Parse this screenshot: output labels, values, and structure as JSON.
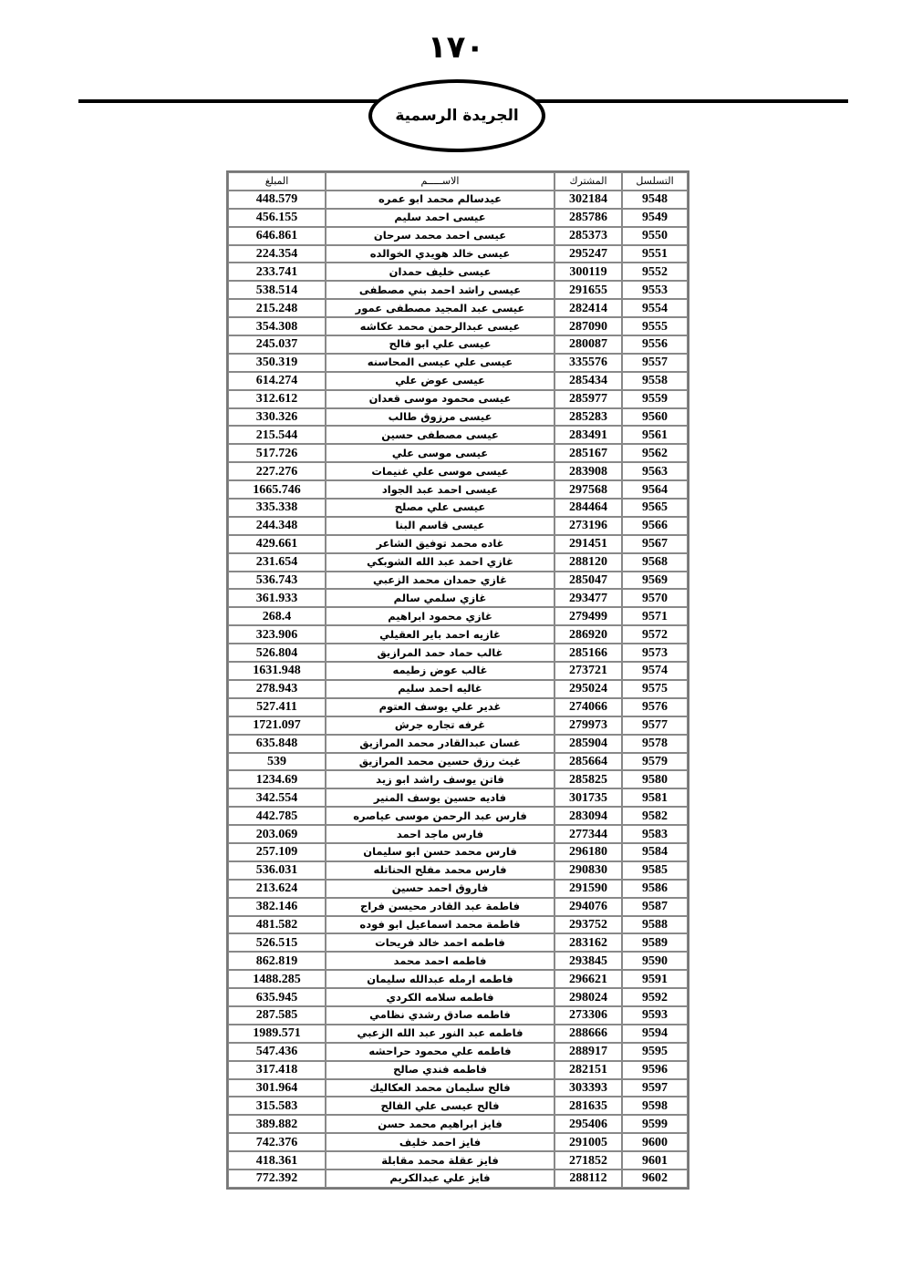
{
  "header": {
    "page_number": "١٧٠",
    "publication_title": "الجريدة الرسمية"
  },
  "table": {
    "columns": [
      "التسلسل",
      "المشترك",
      "الاســـــم",
      "المبلغ"
    ],
    "rows": [
      [
        "9548",
        "302184",
        "عيدسالم محمد ابو عمره",
        "448.579"
      ],
      [
        "9549",
        "285786",
        "عيسى احمد سليم",
        "456.155"
      ],
      [
        "9550",
        "285373",
        "عيسى احمد محمد سرحان",
        "646.861"
      ],
      [
        "9551",
        "295247",
        "عيسى خالد هويدي الخوالده",
        "224.354"
      ],
      [
        "9552",
        "300119",
        "عيسى خليف  حمدان",
        "233.741"
      ],
      [
        "9553",
        "291655",
        "عيسى راشد احمد بني مصطفى",
        "538.514"
      ],
      [
        "9554",
        "282414",
        "عيسى عبد المجيد مصطفى عمور",
        "215.248"
      ],
      [
        "9555",
        "287090",
        "عيسى عبدالرحمن محمد عكاشه",
        "354.308"
      ],
      [
        "9556",
        "280087",
        "عيسى علي ابو فالح",
        "245.037"
      ],
      [
        "9557",
        "335576",
        "عيسى علي عيسى المحاسنه",
        "350.319"
      ],
      [
        "9558",
        "285434",
        "عيسى عوض علي",
        "614.274"
      ],
      [
        "9559",
        "285977",
        "عيسى محمود موسى قعدان",
        "312.612"
      ],
      [
        "9560",
        "285283",
        "عيسى مرزوق طالب",
        "330.326"
      ],
      [
        "9561",
        "283491",
        "عيسى مصطفى حسين",
        "215.544"
      ],
      [
        "9562",
        "285167",
        "عيسى موسى علي",
        "517.726"
      ],
      [
        "9563",
        "283908",
        "عيسى موسى علي غنيمات",
        "227.276"
      ],
      [
        "9564",
        "297568",
        "عيسى احمد عبد الجواد",
        "1665.746"
      ],
      [
        "9565",
        "284464",
        "عيسى علي مصلح",
        "335.338"
      ],
      [
        "9566",
        "273196",
        "عيسى قاسم البنا",
        "244.348"
      ],
      [
        "9567",
        "291451",
        "غاده محمد توفيق الشاعر",
        "429.661"
      ],
      [
        "9568",
        "288120",
        "غازي احمد عبد الله الشوبكي",
        "231.654"
      ],
      [
        "9569",
        "285047",
        "غازي حمدان محمد الزعبي",
        "536.743"
      ],
      [
        "9570",
        "293477",
        "غازي سلمي سالم",
        "361.933"
      ],
      [
        "9571",
        "279499",
        "غازي محمود ابراهيم",
        "268.4"
      ],
      [
        "9572",
        "286920",
        "غازيه احمد باير العقيلي",
        "323.906"
      ],
      [
        "9573",
        "285166",
        "غالب حماد حمد المرازيق",
        "526.804"
      ],
      [
        "9574",
        "273721",
        "غالب عوض زطيمه",
        "1631.948"
      ],
      [
        "9575",
        "295024",
        "غاليه احمد سليم",
        "278.943"
      ],
      [
        "9576",
        "274066",
        "غدير علي يوسف العتوم",
        "527.411"
      ],
      [
        "9577",
        "279973",
        "غرفه تجاره جرش",
        "1721.097"
      ],
      [
        "9578",
        "285904",
        "غسان عبدالقادر محمد المرازيق",
        "635.848"
      ],
      [
        "9579",
        "285664",
        "غيث رزق حسين محمد المرازيق",
        "539"
      ],
      [
        "9580",
        "285825",
        "فاتن يوسف راشد ابو زيد",
        "1234.69"
      ],
      [
        "9581",
        "301735",
        "فاديه حسين يوسف المنير",
        "342.554"
      ],
      [
        "9582",
        "283094",
        "فارس عبد الرحمن موسى عياصره",
        "442.785"
      ],
      [
        "9583",
        "277344",
        "فارس ماجد احمد",
        "203.069"
      ],
      [
        "9584",
        "296180",
        "فارس محمد حسن ابو سليمان",
        "257.109"
      ],
      [
        "9585",
        "290830",
        "فارس محمد مفلح الحناتله",
        "536.031"
      ],
      [
        "9586",
        "291590",
        "فاروق احمد حسين",
        "213.624"
      ],
      [
        "9587",
        "294076",
        "فاطمة عبد القادر محيسن فراج",
        "382.146"
      ],
      [
        "9588",
        "293752",
        "فاطمة محمد اسماعيل ابو فوده",
        "481.582"
      ],
      [
        "9589",
        "283162",
        "فاطمه احمد خالد فريحات",
        "526.515"
      ],
      [
        "9590",
        "293845",
        "فاطمه احمد محمد",
        "862.819"
      ],
      [
        "9591",
        "296621",
        "فاطمه ارمله عبدالله سليمان",
        "1488.285"
      ],
      [
        "9592",
        "298024",
        "فاطمه سلامه الكردي",
        "635.945"
      ],
      [
        "9593",
        "273306",
        "فاطمه صادق رشدي نظامي",
        "287.585"
      ],
      [
        "9594",
        "288666",
        "فاطمه عبد النور عبد الله الزعبي",
        "1989.571"
      ],
      [
        "9595",
        "288917",
        "فاطمه علي محمود حراحشه",
        "547.436"
      ],
      [
        "9596",
        "282151",
        "فاطمه فندي صالح",
        "317.418"
      ],
      [
        "9597",
        "303393",
        "فالح سليمان محمد العكاليك",
        "301.964"
      ],
      [
        "9598",
        "281635",
        "فالح عيسى علي الفالح",
        "315.583"
      ],
      [
        "9599",
        "295406",
        "فايز ابراهيم محمد حسن",
        "389.882"
      ],
      [
        "9600",
        "291005",
        "فايز احمد خليف",
        "742.376"
      ],
      [
        "9601",
        "271852",
        "فايز عقلة محمد مقابلة",
        "418.361"
      ],
      [
        "9602",
        "288112",
        "فايز علي عبدالكريم",
        "772.392"
      ]
    ]
  }
}
